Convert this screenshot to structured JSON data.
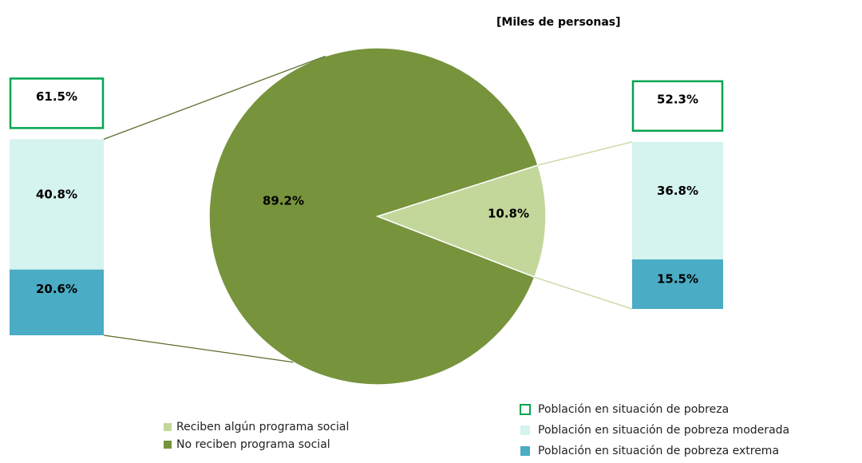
{
  "chart_data": {
    "type": "pie",
    "subtitle": "[Miles de personas]",
    "categories": [
      "Reciben algún programa social",
      "No reciben programa social"
    ],
    "values": [
      10.8,
      89.2
    ],
    "value_labels": [
      "10.8%",
      "89.2%"
    ],
    "colors": [
      "#c4d79b",
      "#77933c"
    ],
    "legend": "bottom",
    "breakdown": {
      "type": "bar",
      "stacked": true,
      "series": [
        {
          "name": "Población en situación de pobreza moderada",
          "color": "#d5f3ef",
          "values": [
            36.8,
            40.8
          ],
          "value_labels": [
            "36.8%",
            "40.8%"
          ]
        },
        {
          "name": "Población en situación de pobreza extrema",
          "color": "#4bacc6",
          "values": [
            15.5,
            20.6
          ],
          "value_labels": [
            "15.5%",
            "20.6%"
          ]
        }
      ],
      "totals": {
        "name": "Población en situación de pobreza",
        "color": "#00a550",
        "values": [
          52.3,
          61.5
        ],
        "value_labels": [
          "52.3%",
          "61.5%"
        ]
      }
    }
  }
}
